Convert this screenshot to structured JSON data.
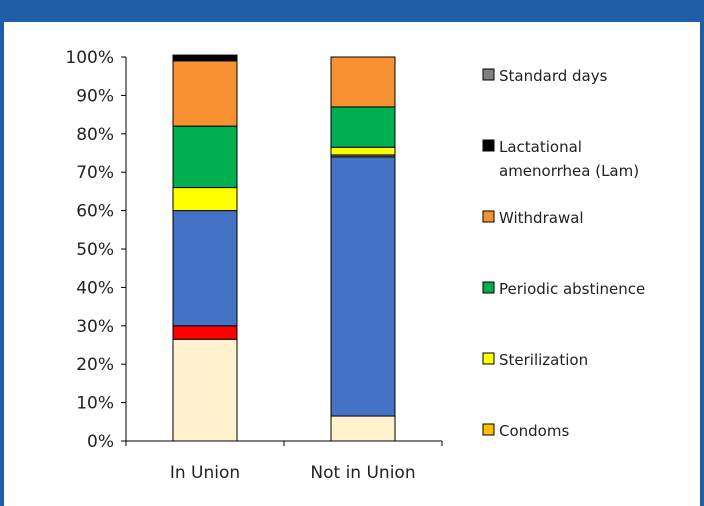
{
  "colors": {
    "frame": "#1f5fa8",
    "axis": "#000000"
  },
  "header": {
    "title": ""
  },
  "chart_data": {
    "type": "bar",
    "stacked": true,
    "title": "",
    "xlabel": "",
    "ylabel": "",
    "ylim": [
      0,
      100
    ],
    "yticks": [
      "0%",
      "10%",
      "20%",
      "30%",
      "40%",
      "50%",
      "60%",
      "70%",
      "80%",
      "90%",
      "100%"
    ],
    "categories": [
      "In Union",
      "Not in Union"
    ],
    "legend_position": "right",
    "series": [
      {
        "name": "",
        "color": "#fff2cc",
        "values": [
          26.5,
          6.5
        ],
        "in_legend": false
      },
      {
        "name": "",
        "color": "#ff0000",
        "values": [
          3.5,
          0.0
        ],
        "in_legend": false
      },
      {
        "name": "",
        "color": "#4472c4",
        "values": [
          30.0,
          67.5
        ],
        "in_legend": false
      },
      {
        "name": "",
        "color": "#7f7f7f",
        "values": [
          0.0,
          0.5
        ],
        "in_legend": false
      },
      {
        "name": "Sterilization",
        "color": "#ffff00",
        "values": [
          6.0,
          2.0
        ],
        "in_legend": true
      },
      {
        "name": "Periodic abstinence",
        "color": "#00b050",
        "values": [
          16.0,
          10.5
        ],
        "in_legend": true
      },
      {
        "name": "Withdrawal",
        "color": "#f79232",
        "values": [
          17.0,
          13.0
        ],
        "in_legend": true
      },
      {
        "name": "Lactational amenorrhea (Lam)",
        "color": "#000000",
        "values": [
          1.5,
          0.0
        ],
        "in_legend": true
      },
      {
        "name": "Standard days",
        "color": "#7f7f7f",
        "values": [
          0.0,
          0.0
        ],
        "in_legend": true
      },
      {
        "name": "Condoms",
        "color": "#ffc000",
        "values": [
          0.0,
          0.0
        ],
        "in_legend": true
      }
    ],
    "legend": [
      {
        "lines": [
          "Standard days"
        ],
        "color": "#7f7f7f"
      },
      {
        "lines": [
          "Lactational",
          "amenorrhea (Lam)"
        ],
        "color": "#000000"
      },
      {
        "lines": [
          "Withdrawal"
        ],
        "color": "#f79232"
      },
      {
        "lines": [
          "Periodic abstinence"
        ],
        "color": "#00b050"
      },
      {
        "lines": [
          "Sterilization"
        ],
        "color": "#ffff00"
      },
      {
        "lines": [
          "Condoms"
        ],
        "color": "#ffc000"
      }
    ]
  }
}
